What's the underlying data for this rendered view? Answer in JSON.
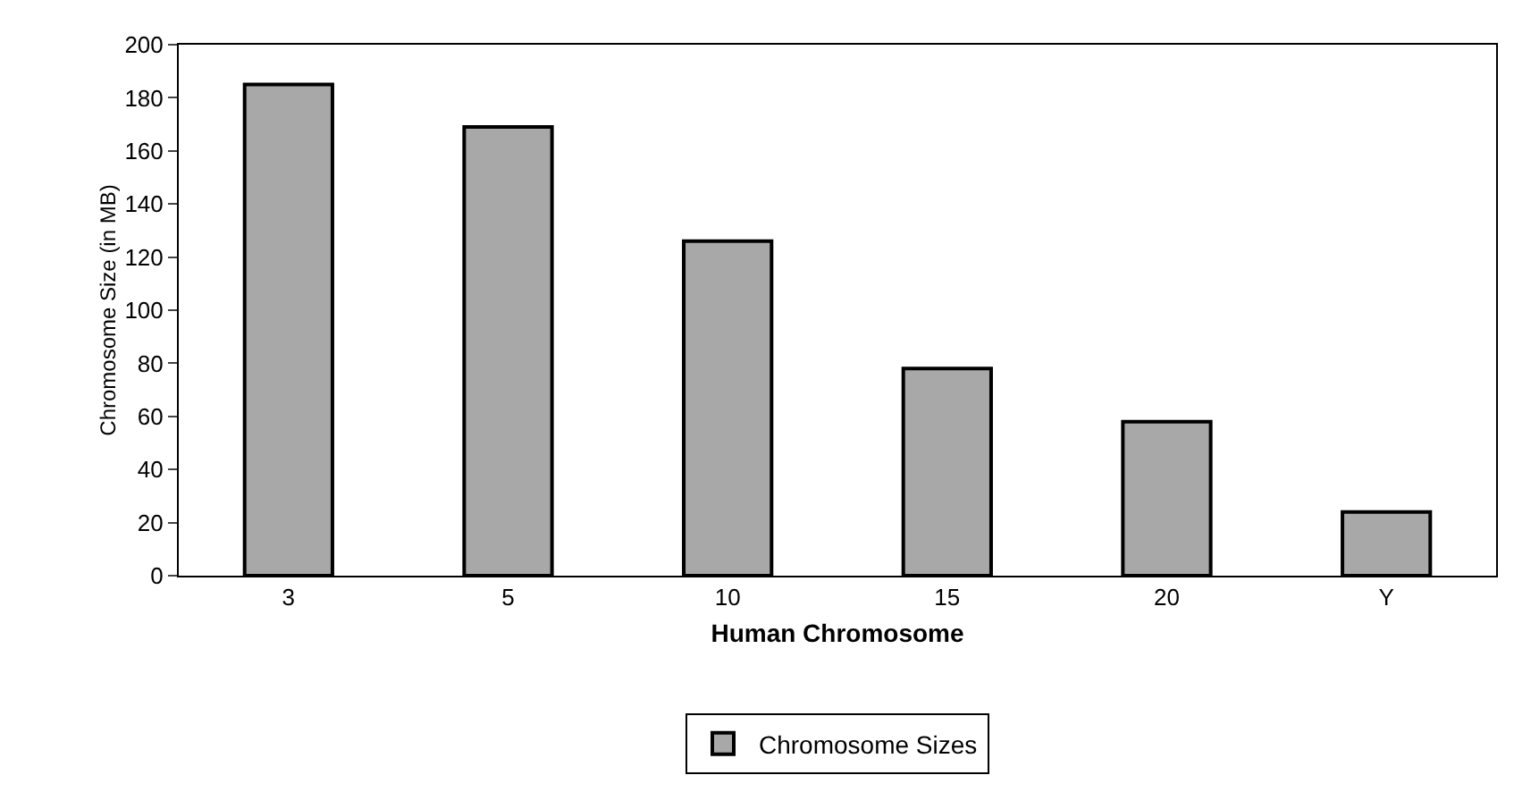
{
  "chart_data": {
    "type": "bar",
    "xlabel": "Human Chromosome",
    "ylabel": "Chromosome Size (in MB)",
    "categories": [
      "3",
      "5",
      "10",
      "15",
      "20",
      "Y"
    ],
    "series": [
      {
        "name": "Chromosome Sizes",
        "color": "#a8a8a8",
        "values": [
          185,
          169,
          126,
          78,
          58,
          24
        ]
      }
    ],
    "ylim": [
      0,
      200
    ],
    "yticks": [
      0,
      20,
      40,
      60,
      80,
      100,
      120,
      140,
      160,
      180,
      200
    ],
    "grid": false,
    "legend": "bottom"
  }
}
